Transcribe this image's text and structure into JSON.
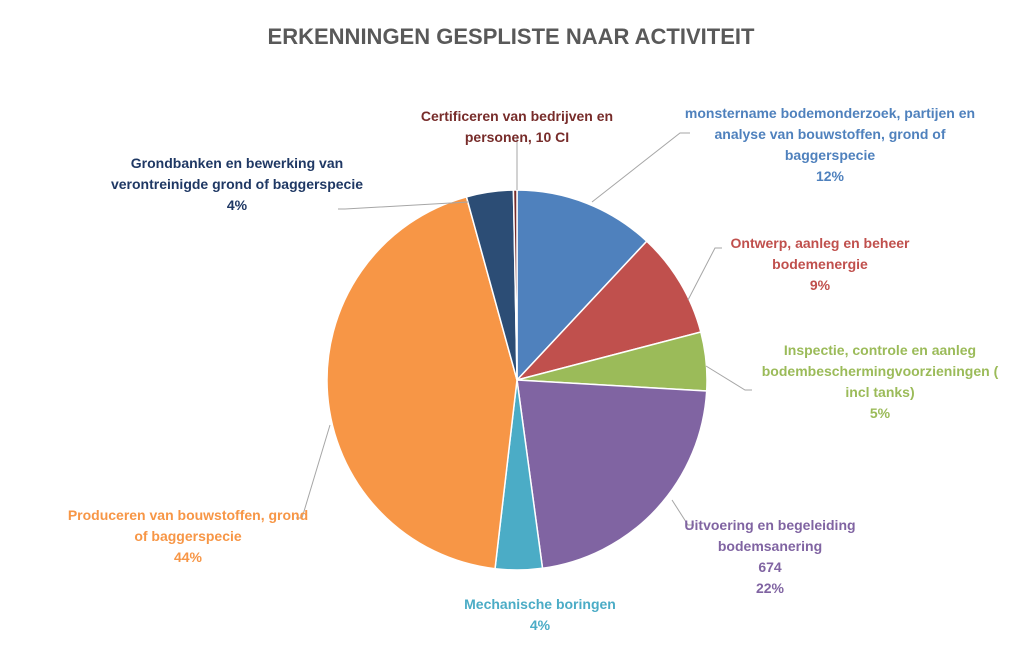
{
  "chart_data": {
    "type": "pie",
    "title": "ERKENNINGEN GESPLISTE NAAR ACTIVITEIT",
    "categories": [
      "monstername bodemonderzoek, partijen en analyse van bouwstoffen, grond of baggerspecie",
      "Ontwerp, aanleg en beheer bodemenergie",
      "Inspectie, controle en aanleg bodembeschermingvoorzieningen ( incl tanks)",
      "Uitvoering en begeleiding bodemsanering",
      "Mechanische boringen",
      "Produceren van bouwstoffen, grond of baggerspecie",
      "Grondbanken en bewerking van verontreinigde grond of baggerspecie",
      "Certificeren van bedrijven en personen, 10 CI"
    ],
    "values": [
      12,
      9,
      5,
      22,
      4,
      44,
      4,
      0.3
    ],
    "value_labels": [
      "12%",
      "9%",
      "5%",
      "22%",
      "4%",
      "44%",
      "4%",
      null
    ],
    "counts": [
      null,
      null,
      null,
      674,
      null,
      null,
      null,
      null
    ],
    "colors": [
      "#4f81bd",
      "#c0504d",
      "#9bbb59",
      "#8064a2",
      "#4bacc6",
      "#f79646",
      "#2c4d75",
      "#772c2a"
    ],
    "label_colors": [
      "#4f81bd",
      "#c0504d",
      "#9bbb59",
      "#8064a2",
      "#4bacc6",
      "#f79646",
      "#1f3864",
      "#772c2a"
    ]
  }
}
